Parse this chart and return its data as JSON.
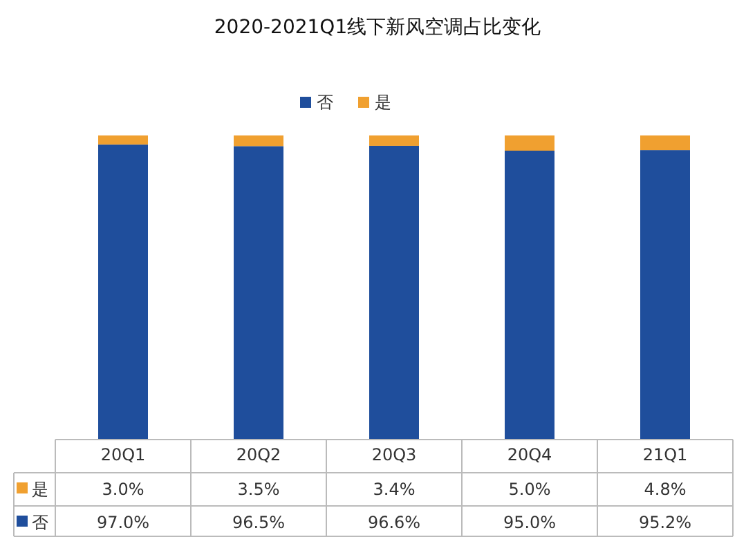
{
  "chart_data": {
    "type": "bar",
    "stacked": true,
    "title": "2020-2021Q1线下新风空调占比变化",
    "categories": [
      "20Q1",
      "20Q2",
      "20Q3",
      "20Q4",
      "21Q1"
    ],
    "series": [
      {
        "name": "否",
        "color": "#1f4e9c",
        "values": [
          97.0,
          96.5,
          96.6,
          95.0,
          95.2
        ],
        "value_labels": [
          "97.0%",
          "96.5%",
          "96.6%",
          "95.0%",
          "95.2%"
        ]
      },
      {
        "name": "是",
        "color": "#f0a030",
        "values": [
          3.0,
          3.5,
          3.4,
          5.0,
          4.8
        ],
        "value_labels": [
          "3.0%",
          "3.5%",
          "3.4%",
          "5.0%",
          "4.8%"
        ]
      }
    ],
    "legend": "top"
  }
}
